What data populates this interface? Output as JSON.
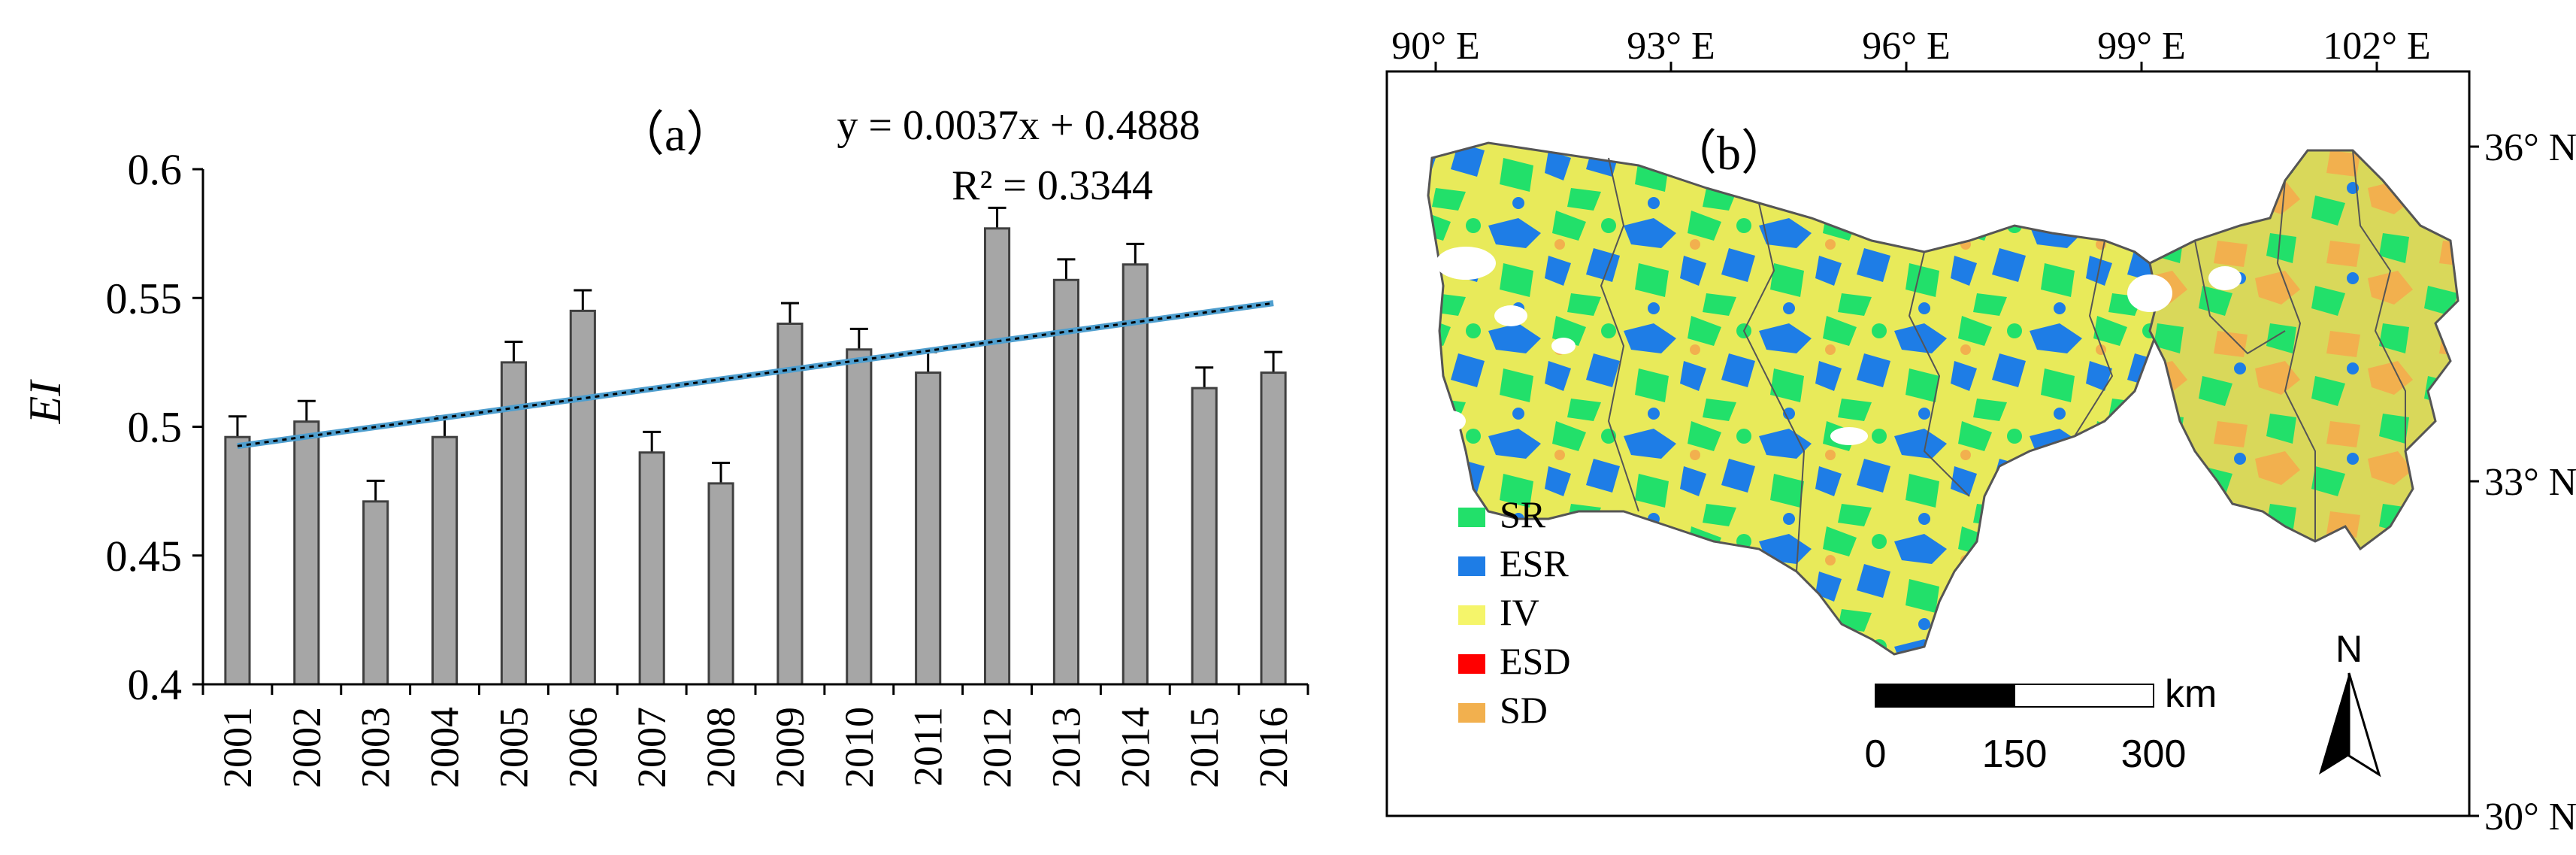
{
  "chart_data": [
    {
      "type": "bar",
      "panel_label": "（a）",
      "categories": [
        "2001",
        "2002",
        "2003",
        "2004",
        "2005",
        "2006",
        "2007",
        "2008",
        "2009",
        "2010",
        "2011",
        "2012",
        "2013",
        "2014",
        "2015",
        "2016"
      ],
      "values": [
        0.496,
        0.502,
        0.471,
        0.496,
        0.525,
        0.545,
        0.49,
        0.478,
        0.54,
        0.53,
        0.521,
        0.577,
        0.557,
        0.563,
        0.515,
        0.521
      ],
      "error": [
        0.008,
        0.008,
        0.008,
        0.008,
        0.008,
        0.008,
        0.008,
        0.008,
        0.008,
        0.008,
        0.008,
        0.008,
        0.008,
        0.008,
        0.008,
        0.008
      ],
      "ylabel": "EI",
      "xlabel": "",
      "ylim": [
        0.4,
        0.6
      ],
      "yticks": [
        "0.4",
        "0.45",
        "0.5",
        "0.55",
        "0.6"
      ],
      "ytick_values": [
        0.4,
        0.45,
        0.5,
        0.55,
        0.6
      ],
      "trendline": {
        "slope": 0.0037,
        "intercept": 0.4888
      },
      "equation": "y = 0.0037x + 0.4888",
      "r2": "R² = 0.3344",
      "colors": {
        "bar": "#a6a6a6",
        "bar_stroke": "#404040",
        "trend": "#4f9fcf",
        "trend_dash": "#000000"
      }
    },
    {
      "type": "map",
      "panel_label": "（b）",
      "lon_labels": [
        "90° E",
        "93° E",
        "96° E",
        "99° E",
        "102° E"
      ],
      "lat_labels": [
        "36° N",
        "33° N",
        "30° N"
      ],
      "legend": [
        {
          "label": "SR",
          "color": "#22e06a"
        },
        {
          "label": "ESR",
          "color": "#1e7de6"
        },
        {
          "label": "IV",
          "color": "#f5f56a"
        },
        {
          "label": "ESD",
          "color": "#ff0000"
        },
        {
          "label": "SD",
          "color": "#f2b04e"
        }
      ],
      "scalebar": {
        "unit": "km",
        "labels": [
          "0",
          "150",
          "300"
        ]
      },
      "north_label": "N"
    }
  ]
}
